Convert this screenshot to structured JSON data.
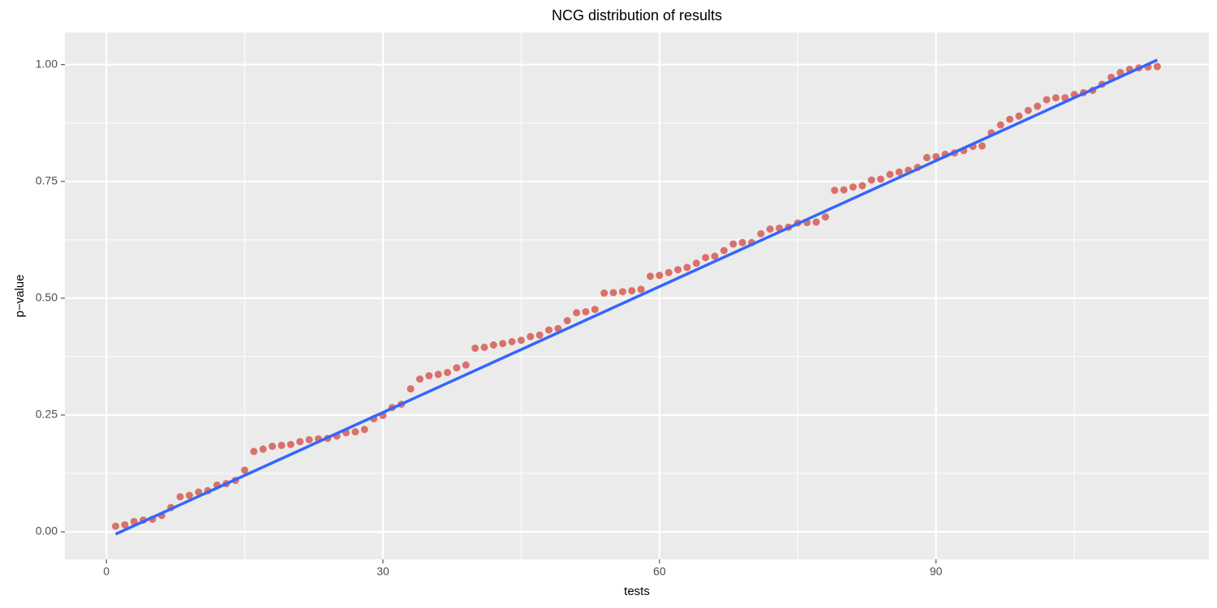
{
  "chart_data": {
    "type": "scatter",
    "title": "NCG distribution of results",
    "xlabel": "tests",
    "ylabel": "p−value",
    "x": [
      1,
      2,
      3,
      4,
      5,
      6,
      7,
      8,
      9,
      10,
      11,
      12,
      13,
      14,
      15,
      16,
      17,
      18,
      19,
      20,
      21,
      22,
      23,
      24,
      25,
      26,
      27,
      28,
      29,
      30,
      31,
      32,
      33,
      34,
      35,
      36,
      37,
      38,
      39,
      40,
      41,
      42,
      43,
      44,
      45,
      46,
      47,
      48,
      49,
      50,
      51,
      52,
      53,
      54,
      55,
      56,
      57,
      58,
      59,
      60,
      61,
      62,
      63,
      64,
      65,
      66,
      67,
      68,
      69,
      70,
      71,
      72,
      73,
      74,
      75,
      76,
      77,
      78,
      79,
      80,
      81,
      82,
      83,
      84,
      85,
      86,
      87,
      88,
      89,
      90,
      91,
      92,
      93,
      94,
      95,
      96,
      97,
      98,
      99,
      100,
      101,
      102,
      103,
      104,
      105,
      106,
      107,
      108,
      109,
      110,
      111,
      112,
      113,
      114
    ],
    "values": [
      0.012,
      0.015,
      0.022,
      0.025,
      0.027,
      0.035,
      0.052,
      0.075,
      0.078,
      0.085,
      0.088,
      0.1,
      0.103,
      0.11,
      0.132,
      0.172,
      0.177,
      0.183,
      0.185,
      0.187,
      0.193,
      0.197,
      0.199,
      0.2,
      0.205,
      0.212,
      0.214,
      0.219,
      0.242,
      0.249,
      0.266,
      0.273,
      0.306,
      0.327,
      0.334,
      0.337,
      0.341,
      0.351,
      0.357,
      0.393,
      0.395,
      0.4,
      0.403,
      0.407,
      0.41,
      0.418,
      0.421,
      0.432,
      0.435,
      0.452,
      0.469,
      0.471,
      0.476,
      0.511,
      0.512,
      0.514,
      0.516,
      0.519,
      0.547,
      0.549,
      0.555,
      0.561,
      0.566,
      0.575,
      0.587,
      0.59,
      0.602,
      0.616,
      0.619,
      0.619,
      0.638,
      0.648,
      0.65,
      0.652,
      0.661,
      0.662,
      0.663,
      0.674,
      0.731,
      0.732,
      0.738,
      0.741,
      0.753,
      0.755,
      0.765,
      0.77,
      0.774,
      0.78,
      0.801,
      0.803,
      0.808,
      0.811,
      0.816,
      0.825,
      0.826,
      0.854,
      0.871,
      0.883,
      0.89,
      0.902,
      0.911,
      0.925,
      0.929,
      0.929,
      0.936,
      0.94,
      0.945,
      0.958,
      0.973,
      0.983,
      0.99,
      0.993,
      0.995,
      0.996
    ],
    "color": "#d9716a",
    "trend_line": {
      "x": [
        1,
        114
      ],
      "values": [
        -0.005,
        1.01
      ],
      "color": "#3366ff"
    },
    "xlim": [
      -4.5,
      119.6
    ],
    "ylim": [
      -0.059,
      1.069
    ],
    "xticks": [
      0,
      30,
      60,
      90
    ],
    "yticks": [
      {
        "value": 0,
        "label": "0.00"
      },
      {
        "value": 0.25,
        "label": "0.25"
      },
      {
        "value": 0.5,
        "label": "0.50"
      },
      {
        "value": 0.75,
        "label": "0.75"
      },
      {
        "value": 1,
        "label": "1.00"
      }
    ],
    "xminor": [
      15,
      45,
      75,
      105
    ],
    "yminor": [
      0.125,
      0.375,
      0.625,
      0.875
    ],
    "grid": true
  }
}
